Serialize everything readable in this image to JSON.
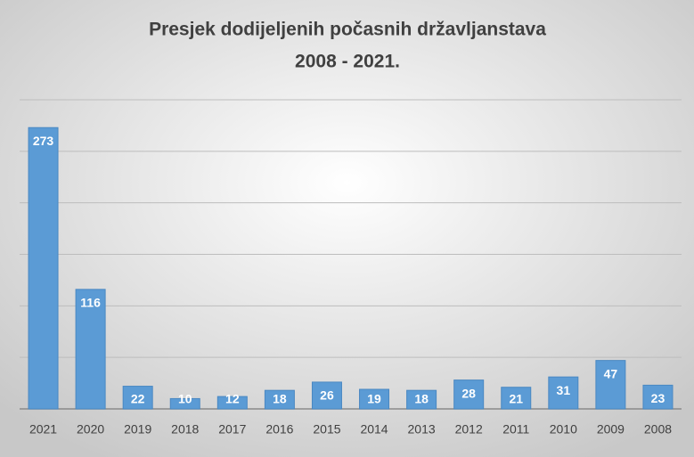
{
  "chart_data": {
    "type": "bar",
    "title": [
      "Presjek dodijeljenih počasnih državljanstava",
      "2008 - 2021."
    ],
    "categories": [
      "2021",
      "2020",
      "2019",
      "2018",
      "2017",
      "2016",
      "2015",
      "2014",
      "2013",
      "2012",
      "2011",
      "2010",
      "2009",
      "2008"
    ],
    "values": [
      273,
      116,
      22,
      10,
      12,
      18,
      26,
      19,
      18,
      28,
      21,
      31,
      47,
      23
    ],
    "color": "#5b9bd5",
    "ylim": [
      0,
      300
    ],
    "yticks": [
      0,
      50,
      100,
      150,
      200,
      250,
      300
    ],
    "grid": true
  }
}
